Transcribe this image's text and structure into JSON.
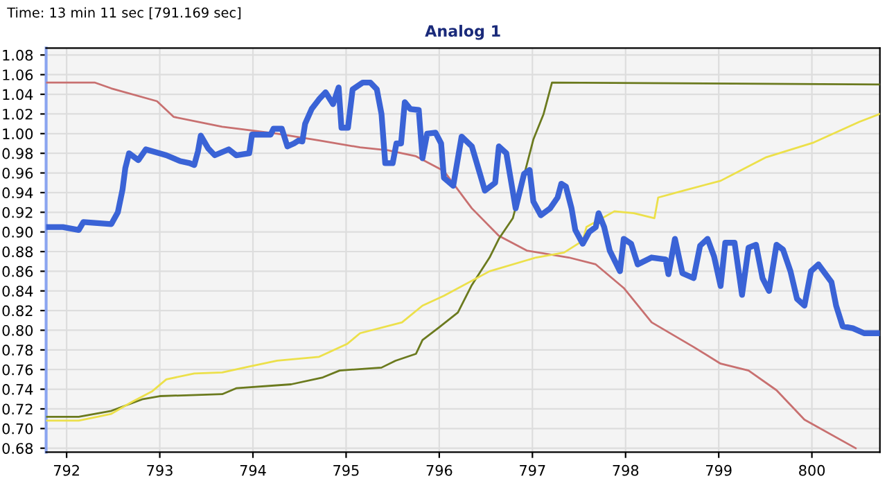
{
  "chart_data": {
    "type": "line",
    "title": "Analog 1",
    "annotations": [
      "Time: 13 min 11 sec [791.169 sec]"
    ],
    "xlim": [
      791.78,
      800.73
    ],
    "ylim": [
      0.676,
      1.087
    ],
    "xticks": [
      792,
      793,
      794,
      795,
      796,
      797,
      798,
      799,
      800
    ],
    "yticks": [
      0.68,
      {
        "value": 0.7,
        "label": "0.70"
      },
      0.72,
      0.74,
      0.76,
      0.78,
      {
        "value": 0.8,
        "label": "0.80"
      },
      0.82,
      0.84,
      0.86,
      0.88,
      {
        "value": 0.9,
        "label": "0.90"
      },
      0.92,
      0.94,
      0.96,
      0.98,
      {
        "value": 1.0,
        "label": "1.00"
      },
      1.02,
      1.04,
      1.06,
      1.08
    ],
    "grid": true,
    "legend": false,
    "series": [
      {
        "color": "#c87070",
        "x": [
          791.78,
          792.3,
          792.48,
          792.97,
          793.15,
          793.67,
          794.26,
          794.71,
          795.15,
          795.45,
          795.75,
          796.05,
          796.35,
          796.64,
          796.94,
          797.39,
          797.68,
          797.98,
          798.28,
          798.73,
          799.02,
          799.32,
          799.62,
          799.92,
          800.47
        ],
        "values": [
          1.052,
          1.052,
          1.046,
          1.033,
          1.017,
          1.007,
          1.0,
          0.993,
          0.986,
          0.983,
          0.977,
          0.962,
          0.924,
          0.896,
          0.881,
          0.874,
          0.867,
          0.843,
          0.808,
          0.783,
          0.766,
          0.759,
          0.739,
          0.709,
          0.68
        ]
      },
      {
        "color": "#6b7a1e",
        "x": [
          791.78,
          792.13,
          792.48,
          792.82,
          793.0,
          793.67,
          793.82,
          794.41,
          794.75,
          794.93,
          795.38,
          795.53,
          795.75,
          795.82,
          796.0,
          796.2,
          796.35,
          796.54,
          796.64,
          796.79,
          797.01,
          797.12,
          797.21,
          800.73
        ],
        "values": [
          0.712,
          0.712,
          0.718,
          0.73,
          0.733,
          0.735,
          0.741,
          0.745,
          0.752,
          0.759,
          0.762,
          0.769,
          0.776,
          0.79,
          0.803,
          0.818,
          0.846,
          0.874,
          0.893,
          0.914,
          0.994,
          1.02,
          1.052,
          1.05
        ]
      },
      {
        "color": "#ece04a",
        "x": [
          791.78,
          792.13,
          792.33,
          792.48,
          792.7,
          792.92,
          793.07,
          793.37,
          793.67,
          793.96,
          794.26,
          794.71,
          795.01,
          795.15,
          795.6,
          795.82,
          796.05,
          796.54,
          797.04,
          797.34,
          797.54,
          797.58,
          797.88,
          798.09,
          798.31,
          798.35,
          798.62,
          799.02,
          799.51,
          800.02,
          800.51,
          800.73
        ],
        "values": [
          0.708,
          0.708,
          0.712,
          0.715,
          0.727,
          0.738,
          0.75,
          0.756,
          0.757,
          0.763,
          0.769,
          0.773,
          0.786,
          0.797,
          0.808,
          0.825,
          0.835,
          0.86,
          0.874,
          0.879,
          0.891,
          0.905,
          0.921,
          0.919,
          0.914,
          0.935,
          0.942,
          0.952,
          0.976,
          0.991,
          1.012,
          1.02
        ]
      },
      {
        "color": "#3a63d6",
        "x": [
          791.78,
          791.96,
          792.13,
          792.18,
          792.48,
          792.55,
          792.6,
          792.63,
          792.67,
          792.77,
          792.85,
          793.07,
          793.22,
          793.32,
          793.37,
          793.41,
          793.44,
          793.52,
          793.59,
          793.74,
          793.82,
          793.96,
          793.99,
          794.19,
          794.22,
          794.31,
          794.37,
          794.44,
          794.49,
          794.53,
          794.56,
          794.63,
          794.71,
          794.78,
          794.86,
          794.92,
          794.95,
          795.02,
          795.07,
          795.18,
          795.26,
          795.33,
          795.38,
          795.42,
          795.5,
          795.54,
          795.59,
          795.63,
          795.69,
          795.78,
          795.82,
          795.87,
          795.96,
          796.02,
          796.05,
          796.15,
          796.24,
          796.35,
          796.49,
          796.6,
          796.64,
          796.72,
          796.82,
          796.91,
          796.97,
          797.01,
          797.09,
          797.19,
          797.27,
          797.31,
          797.36,
          797.42,
          797.46,
          797.54,
          797.61,
          797.68,
          797.71,
          797.77,
          797.83,
          797.94,
          797.98,
          798.06,
          798.13,
          798.28,
          798.43,
          798.46,
          798.53,
          798.61,
          798.73,
          798.8,
          798.88,
          798.95,
          799.02,
          799.07,
          799.17,
          799.25,
          799.32,
          799.4,
          799.47,
          799.54,
          799.62,
          799.69,
          799.77,
          799.84,
          799.92,
          799.99,
          800.07,
          800.21,
          800.26,
          800.33,
          800.44,
          800.56,
          800.73
        ],
        "values": [
          0.905,
          0.905,
          0.902,
          0.91,
          0.908,
          0.92,
          0.943,
          0.965,
          0.98,
          0.973,
          0.984,
          0.978,
          0.972,
          0.97,
          0.968,
          0.982,
          0.998,
          0.985,
          0.978,
          0.984,
          0.978,
          0.98,
          0.999,
          0.999,
          1.005,
          1.005,
          0.987,
          0.99,
          0.993,
          0.992,
          1.01,
          1.025,
          1.035,
          1.042,
          1.03,
          1.047,
          1.006,
          1.006,
          1.045,
          1.052,
          1.052,
          1.045,
          1.02,
          0.97,
          0.97,
          0.99,
          0.99,
          1.032,
          1.025,
          1.024,
          0.975,
          1.0,
          1.001,
          0.99,
          0.955,
          0.947,
          0.997,
          0.987,
          0.942,
          0.95,
          0.987,
          0.98,
          0.924,
          0.959,
          0.963,
          0.931,
          0.917,
          0.924,
          0.935,
          0.949,
          0.946,
          0.924,
          0.902,
          0.888,
          0.9,
          0.905,
          0.919,
          0.905,
          0.881,
          0.86,
          0.893,
          0.888,
          0.867,
          0.874,
          0.872,
          0.857,
          0.893,
          0.858,
          0.853,
          0.886,
          0.893,
          0.875,
          0.845,
          0.889,
          0.889,
          0.836,
          0.884,
          0.887,
          0.853,
          0.84,
          0.887,
          0.882,
          0.86,
          0.832,
          0.825,
          0.86,
          0.867,
          0.849,
          0.825,
          0.804,
          0.802,
          0.797,
          0.797
        ]
      }
    ]
  }
}
